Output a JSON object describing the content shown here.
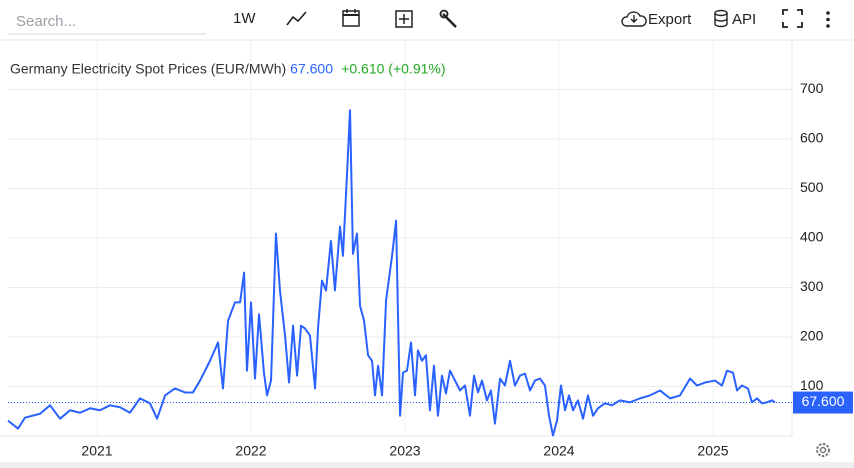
{
  "toolbar": {
    "search_placeholder": "Search...",
    "interval": "1W",
    "export": "Export",
    "api": "API"
  },
  "chart_data": {
    "type": "line",
    "title": "Germany Electricity Spot Prices (EUR/MWh)",
    "last_value_label": "67.600",
    "change_label": "+0.610 (+0.91%)",
    "xlim": [
      2020.422,
      2025.513
    ],
    "xticks": [
      2021,
      2022,
      2023,
      2024,
      2025
    ],
    "ylim": [
      0,
      800
    ],
    "yticks": [
      100,
      200,
      300,
      400,
      500,
      600,
      700
    ],
    "grid": true,
    "series": [
      {
        "color": "#2962ff",
        "x": [
          2020.422,
          2020.487,
          2020.532,
          2020.63,
          2020.695,
          2020.76,
          2020.825,
          2020.89,
          2020.955,
          2021.019,
          2021.084,
          2021.149,
          2021.214,
          2021.279,
          2021.344,
          2021.39,
          2021.442,
          2021.506,
          2021.571,
          2021.623,
          2021.669,
          2021.734,
          2021.786,
          2021.818,
          2021.851,
          2021.896,
          2021.929,
          2021.955,
          2021.974,
          2022.0,
          2022.026,
          2022.052,
          2022.084,
          2022.104,
          2022.13,
          2022.162,
          2022.188,
          2022.221,
          2022.247,
          2022.273,
          2022.299,
          2022.325,
          2022.351,
          2022.383,
          2022.416,
          2022.435,
          2022.461,
          2022.487,
          2022.519,
          2022.545,
          2022.578,
          2022.597,
          2022.623,
          2022.643,
          2022.662,
          2022.688,
          2022.708,
          2022.734,
          2022.76,
          2022.786,
          2022.805,
          2022.825,
          2022.851,
          2022.877,
          2022.916,
          2022.942,
          2022.968,
          2022.987,
          2023.013,
          2023.039,
          2023.065,
          2023.084,
          2023.11,
          2023.136,
          2023.162,
          2023.188,
          2023.214,
          2023.24,
          2023.266,
          2023.292,
          2023.325,
          2023.357,
          2023.39,
          2023.422,
          2023.448,
          2023.474,
          2023.5,
          2023.532,
          2023.558,
          2023.584,
          2023.617,
          2023.649,
          2023.682,
          2023.714,
          2023.747,
          2023.779,
          2023.812,
          2023.844,
          2023.877,
          2023.909,
          2023.935,
          2023.961,
          2023.987,
          2024.013,
          2024.039,
          2024.065,
          2024.091,
          2024.123,
          2024.156,
          2024.188,
          2024.221,
          2024.253,
          2024.299,
          2024.344,
          2024.396,
          2024.461,
          2024.526,
          2024.591,
          2024.656,
          2024.721,
          2024.786,
          2024.851,
          2024.896,
          2024.948,
          2025.013,
          2025.058,
          2025.091,
          2025.13,
          2025.156,
          2025.188,
          2025.227,
          2025.253,
          2025.286,
          2025.318,
          2025.351,
          2025.383,
          2025.403
        ],
        "values": [
          31,
          15,
          37,
          45,
          62,
          35,
          52,
          47,
          56,
          52,
          62,
          58,
          47,
          76,
          66,
          35,
          82,
          96,
          88,
          88,
          112,
          152,
          189,
          96,
          233,
          270,
          270,
          330,
          132,
          270,
          116,
          246,
          128,
          82,
          112,
          409,
          294,
          203,
          108,
          223,
          122,
          223,
          217,
          203,
          96,
          217,
          314,
          294,
          394,
          294,
          423,
          364,
          526,
          658,
          368,
          409,
          263,
          233,
          163,
          152,
          82,
          142,
          82,
          274,
          364,
          435,
          41,
          128,
          132,
          189,
          82,
          173,
          152,
          163,
          52,
          142,
          41,
          122,
          86,
          132,
          112,
          92,
          102,
          41,
          122,
          88,
          112,
          72,
          92,
          25,
          116,
          102,
          152,
          102,
          122,
          126,
          92,
          112,
          116,
          102,
          41,
          1,
          31,
          102,
          52,
          82,
          52,
          72,
          35,
          82,
          41,
          56,
          66,
          62,
          72,
          68,
          76,
          82,
          92,
          76,
          82,
          116,
          102,
          108,
          112,
          102,
          132,
          128,
          92,
          102,
          96,
          68,
          76,
          66,
          68,
          72,
          67.6
        ]
      }
    ]
  }
}
